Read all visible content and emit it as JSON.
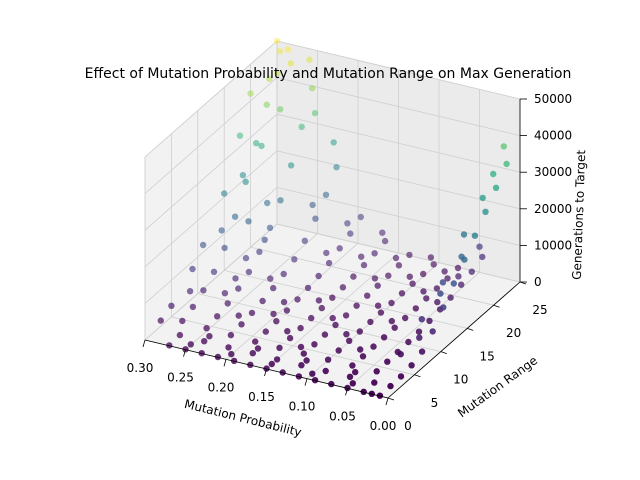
{
  "chart_data": {
    "type": "scatter",
    "projection": "3d",
    "title": "Effect of Mutation Probability and Mutation Range on Max Generation",
    "xlabel": "Mutation Probability",
    "ylabel": "Mutation Range",
    "zlabel": "Generations to Target",
    "xlim": [
      0,
      0.3
    ],
    "ylim": [
      0,
      25
    ],
    "zlim": [
      0,
      50000
    ],
    "xticks": [
      "0.00",
      "0.05",
      "0.10",
      "0.15",
      "0.20",
      "0.25",
      "0.30"
    ],
    "yticks": [
      "0",
      "5",
      "10",
      "15",
      "20",
      "25"
    ],
    "zticks": [
      "0",
      "10000",
      "20000",
      "30000",
      "40000",
      "50000"
    ],
    "colormap": "viridis",
    "color_by": "z",
    "grid": true,
    "pane_color": "#f2f2f2",
    "series": [
      {
        "points": [
          {
            "x": 0.01,
            "y": 0,
            "z": 100
          },
          {
            "x": 0.02,
            "y": 0,
            "z": 100
          },
          {
            "x": 0.03,
            "y": 0,
            "z": 100
          },
          {
            "x": 0.05,
            "y": 0,
            "z": 100
          },
          {
            "x": 0.07,
            "y": 0,
            "z": 100
          },
          {
            "x": 0.09,
            "y": 0,
            "z": 100
          },
          {
            "x": 0.11,
            "y": 0,
            "z": 100
          },
          {
            "x": 0.13,
            "y": 0,
            "z": 100
          },
          {
            "x": 0.15,
            "y": 0,
            "z": 100
          },
          {
            "x": 0.17,
            "y": 0,
            "z": 100
          },
          {
            "x": 0.19,
            "y": 0,
            "z": 100
          },
          {
            "x": 0.21,
            "y": 0,
            "z": 100
          },
          {
            "x": 0.23,
            "y": 0,
            "z": 100
          },
          {
            "x": 0.25,
            "y": 0,
            "z": 100
          },
          {
            "x": 0.27,
            "y": 0,
            "z": 100
          },
          {
            "x": 0.01,
            "y": 2,
            "z": 200
          },
          {
            "x": 0.03,
            "y": 2,
            "z": 100
          },
          {
            "x": 0.06,
            "y": 2,
            "z": 100
          },
          {
            "x": 0.09,
            "y": 2,
            "z": 100
          },
          {
            "x": 0.12,
            "y": 2,
            "z": 100
          },
          {
            "x": 0.15,
            "y": 2,
            "z": 100
          },
          {
            "x": 0.18,
            "y": 2,
            "z": 200
          },
          {
            "x": 0.21,
            "y": 2,
            "z": 200
          },
          {
            "x": 0.24,
            "y": 2,
            "z": 300
          },
          {
            "x": 0.27,
            "y": 2,
            "z": 400
          },
          {
            "x": 0.01,
            "y": 4,
            "z": 300
          },
          {
            "x": 0.04,
            "y": 4,
            "z": 100
          },
          {
            "x": 0.07,
            "y": 4,
            "z": 100
          },
          {
            "x": 0.1,
            "y": 4,
            "z": 100
          },
          {
            "x": 0.13,
            "y": 4,
            "z": 200
          },
          {
            "x": 0.16,
            "y": 4,
            "z": 200
          },
          {
            "x": 0.19,
            "y": 4,
            "z": 300
          },
          {
            "x": 0.22,
            "y": 4,
            "z": 500
          },
          {
            "x": 0.25,
            "y": 4,
            "z": 800
          },
          {
            "x": 0.28,
            "y": 4,
            "z": 1200
          },
          {
            "x": 0.01,
            "y": 6,
            "z": 800
          },
          {
            "x": 0.04,
            "y": 6,
            "z": 200
          },
          {
            "x": 0.07,
            "y": 6,
            "z": 100
          },
          {
            "x": 0.1,
            "y": 6,
            "z": 100
          },
          {
            "x": 0.13,
            "y": 6,
            "z": 200
          },
          {
            "x": 0.16,
            "y": 6,
            "z": 300
          },
          {
            "x": 0.19,
            "y": 6,
            "z": 500
          },
          {
            "x": 0.22,
            "y": 6,
            "z": 900
          },
          {
            "x": 0.25,
            "y": 6,
            "z": 1500
          },
          {
            "x": 0.28,
            "y": 6,
            "z": 2500
          },
          {
            "x": 0.01,
            "y": 8,
            "z": 2000
          },
          {
            "x": 0.04,
            "y": 8,
            "z": 300
          },
          {
            "x": 0.07,
            "y": 8,
            "z": 200
          },
          {
            "x": 0.1,
            "y": 8,
            "z": 200
          },
          {
            "x": 0.13,
            "y": 8,
            "z": 300
          },
          {
            "x": 0.16,
            "y": 8,
            "z": 500
          },
          {
            "x": 0.19,
            "y": 8,
            "z": 800
          },
          {
            "x": 0.22,
            "y": 8,
            "z": 1500
          },
          {
            "x": 0.25,
            "y": 8,
            "z": 2500
          },
          {
            "x": 0.28,
            "y": 8,
            "z": 4500
          },
          {
            "x": 0.01,
            "y": 10,
            "z": 5000
          },
          {
            "x": 0.04,
            "y": 10,
            "z": 500
          },
          {
            "x": 0.07,
            "y": 10,
            "z": 200
          },
          {
            "x": 0.1,
            "y": 10,
            "z": 200
          },
          {
            "x": 0.13,
            "y": 10,
            "z": 400
          },
          {
            "x": 0.16,
            "y": 10,
            "z": 700
          },
          {
            "x": 0.19,
            "y": 10,
            "z": 1200
          },
          {
            "x": 0.22,
            "y": 10,
            "z": 2200
          },
          {
            "x": 0.25,
            "y": 10,
            "z": 4000
          },
          {
            "x": 0.28,
            "y": 10,
            "z": 7000
          },
          {
            "x": 0.01,
            "y": 12,
            "z": 9000
          },
          {
            "x": 0.04,
            "y": 12,
            "z": 800
          },
          {
            "x": 0.07,
            "y": 12,
            "z": 300
          },
          {
            "x": 0.1,
            "y": 12,
            "z": 300
          },
          {
            "x": 0.13,
            "y": 12,
            "z": 500
          },
          {
            "x": 0.16,
            "y": 12,
            "z": 900
          },
          {
            "x": 0.19,
            "y": 12,
            "z": 1700
          },
          {
            "x": 0.22,
            "y": 12,
            "z": 3200
          },
          {
            "x": 0.25,
            "y": 12,
            "z": 6000
          },
          {
            "x": 0.28,
            "y": 12,
            "z": 11000
          },
          {
            "x": 0.01,
            "y": 14,
            "z": 13000
          },
          {
            "x": 0.04,
            "y": 14,
            "z": 1200
          },
          {
            "x": 0.07,
            "y": 14,
            "z": 400
          },
          {
            "x": 0.1,
            "y": 14,
            "z": 300
          },
          {
            "x": 0.13,
            "y": 14,
            "z": 600
          },
          {
            "x": 0.16,
            "y": 14,
            "z": 1200
          },
          {
            "x": 0.19,
            "y": 14,
            "z": 2300
          },
          {
            "x": 0.22,
            "y": 14,
            "z": 4500
          },
          {
            "x": 0.25,
            "y": 14,
            "z": 9000
          },
          {
            "x": 0.28,
            "y": 14,
            "z": 17000
          },
          {
            "x": 0.01,
            "y": 16,
            "z": 17000
          },
          {
            "x": 0.04,
            "y": 16,
            "z": 1800
          },
          {
            "x": 0.07,
            "y": 16,
            "z": 500
          },
          {
            "x": 0.1,
            "y": 16,
            "z": 400
          },
          {
            "x": 0.13,
            "y": 16,
            "z": 800
          },
          {
            "x": 0.16,
            "y": 16,
            "z": 1500
          },
          {
            "x": 0.19,
            "y": 16,
            "z": 3000
          },
          {
            "x": 0.22,
            "y": 16,
            "z": 6000
          },
          {
            "x": 0.25,
            "y": 16,
            "z": 13000
          },
          {
            "x": 0.28,
            "y": 16,
            "z": 24000
          },
          {
            "x": 0.01,
            "y": 18,
            "z": 21000
          },
          {
            "x": 0.04,
            "y": 18,
            "z": 2500
          },
          {
            "x": 0.07,
            "y": 18,
            "z": 700
          },
          {
            "x": 0.1,
            "y": 18,
            "z": 500
          },
          {
            "x": 0.13,
            "y": 18,
            "z": 1000
          },
          {
            "x": 0.16,
            "y": 18,
            "z": 1900
          },
          {
            "x": 0.19,
            "y": 18,
            "z": 4000
          },
          {
            "x": 0.22,
            "y": 18,
            "z": 8500
          },
          {
            "x": 0.25,
            "y": 18,
            "z": 18000
          },
          {
            "x": 0.28,
            "y": 18,
            "z": 32000
          },
          {
            "x": 0.01,
            "y": 20,
            "z": 25000
          },
          {
            "x": 0.04,
            "y": 20,
            "z": 3500
          },
          {
            "x": 0.07,
            "y": 20,
            "z": 900
          },
          {
            "x": 0.1,
            "y": 20,
            "z": 600
          },
          {
            "x": 0.13,
            "y": 20,
            "z": 1200
          },
          {
            "x": 0.16,
            "y": 20,
            "z": 2500
          },
          {
            "x": 0.19,
            "y": 20,
            "z": 5500
          },
          {
            "x": 0.22,
            "y": 20,
            "z": 12000
          },
          {
            "x": 0.25,
            "y": 20,
            "z": 25000
          },
          {
            "x": 0.28,
            "y": 20,
            "z": 40000
          },
          {
            "x": 0.01,
            "y": 22,
            "z": 29000
          },
          {
            "x": 0.04,
            "y": 22,
            "z": 4500
          },
          {
            "x": 0.07,
            "y": 22,
            "z": 1100
          },
          {
            "x": 0.1,
            "y": 22,
            "z": 700
          },
          {
            "x": 0.13,
            "y": 22,
            "z": 1500
          },
          {
            "x": 0.16,
            "y": 22,
            "z": 3200
          },
          {
            "x": 0.19,
            "y": 22,
            "z": 7000
          },
          {
            "x": 0.22,
            "y": 22,
            "z": 16000
          },
          {
            "x": 0.25,
            "y": 22,
            "z": 33000
          },
          {
            "x": 0.28,
            "y": 22,
            "z": 46000
          },
          {
            "x": 0.01,
            "y": 24,
            "z": 33000
          },
          {
            "x": 0.04,
            "y": 24,
            "z": 6000
          },
          {
            "x": 0.07,
            "y": 24,
            "z": 1400
          },
          {
            "x": 0.1,
            "y": 24,
            "z": 800
          },
          {
            "x": 0.13,
            "y": 24,
            "z": 1800
          },
          {
            "x": 0.16,
            "y": 24,
            "z": 4000
          },
          {
            "x": 0.19,
            "y": 24,
            "z": 9000
          },
          {
            "x": 0.22,
            "y": 24,
            "z": 21000
          },
          {
            "x": 0.25,
            "y": 24,
            "z": 41000
          },
          {
            "x": 0.28,
            "y": 24,
            "z": 50000
          },
          {
            "x": 0.27,
            "y": 23,
            "z": 48000
          },
          {
            "x": 0.29,
            "y": 24,
            "z": 49000
          },
          {
            "x": 0.26,
            "y": 25,
            "z": 47000
          },
          {
            "x": 0.29,
            "y": 22,
            "z": 44000
          },
          {
            "x": 0.3,
            "y": 25,
            "z": 50000
          },
          {
            "x": 0.24,
            "y": 23,
            "z": 36000
          },
          {
            "x": 0.27,
            "y": 21,
            "z": 38000
          },
          {
            "x": 0.28,
            "y": 19,
            "z": 30000
          },
          {
            "x": 0.29,
            "y": 17,
            "z": 24000
          },
          {
            "x": 0.3,
            "y": 20,
            "z": 42000
          },
          {
            "x": 0.3,
            "y": 18,
            "z": 33000
          },
          {
            "x": 0.26,
            "y": 17,
            "z": 18000
          },
          {
            "x": 0.27,
            "y": 15,
            "z": 15000
          },
          {
            "x": 0.29,
            "y": 13,
            "z": 14000
          },
          {
            "x": 0.3,
            "y": 15,
            "z": 21000
          },
          {
            "x": 0.25,
            "y": 15,
            "z": 11000
          },
          {
            "x": 0.3,
            "y": 11,
            "z": 12000
          },
          {
            "x": 0.3,
            "y": 9,
            "z": 8000
          },
          {
            "x": 0.29,
            "y": 7,
            "z": 5000
          },
          {
            "x": 0.3,
            "y": 5,
            "z": 3000
          },
          {
            "x": 0.02,
            "y": 25,
            "z": 36000
          },
          {
            "x": 0.02,
            "y": 23,
            "z": 31000
          },
          {
            "x": 0.02,
            "y": 21,
            "z": 27000
          },
          {
            "x": 0.03,
            "y": 19,
            "z": 19000
          },
          {
            "x": 0.02,
            "y": 17,
            "z": 16000
          },
          {
            "x": 0.03,
            "y": 15,
            "z": 11000
          },
          {
            "x": 0.02,
            "y": 13,
            "z": 11000
          },
          {
            "x": 0.03,
            "y": 11,
            "z": 6000
          },
          {
            "x": 0.02,
            "y": 9,
            "z": 4000
          },
          {
            "x": 0.03,
            "y": 7,
            "z": 1500
          },
          {
            "x": 0.05,
            "y": 25,
            "z": 7000
          },
          {
            "x": 0.05,
            "y": 21,
            "z": 4000
          },
          {
            "x": 0.05,
            "y": 17,
            "z": 2000
          },
          {
            "x": 0.08,
            "y": 23,
            "z": 1200
          },
          {
            "x": 0.08,
            "y": 19,
            "z": 800
          },
          {
            "x": 0.11,
            "y": 25,
            "z": 900
          },
          {
            "x": 0.11,
            "y": 21,
            "z": 700
          },
          {
            "x": 0.14,
            "y": 23,
            "z": 1700
          },
          {
            "x": 0.14,
            "y": 19,
            "z": 1200
          },
          {
            "x": 0.17,
            "y": 25,
            "z": 4500
          },
          {
            "x": 0.17,
            "y": 21,
            "z": 3000
          },
          {
            "x": 0.2,
            "y": 23,
            "z": 8000
          },
          {
            "x": 0.2,
            "y": 19,
            "z": 5000
          },
          {
            "x": 0.23,
            "y": 25,
            "z": 26000
          },
          {
            "x": 0.23,
            "y": 21,
            "z": 14000
          },
          {
            "x": 0.08,
            "y": 13,
            "z": 300
          },
          {
            "x": 0.11,
            "y": 15,
            "z": 400
          },
          {
            "x": 0.14,
            "y": 11,
            "z": 500
          },
          {
            "x": 0.17,
            "y": 13,
            "z": 1200
          },
          {
            "x": 0.2,
            "y": 11,
            "z": 1700
          },
          {
            "x": 0.23,
            "y": 13,
            "z": 4000
          },
          {
            "x": 0.08,
            "y": 7,
            "z": 150
          },
          {
            "x": 0.11,
            "y": 9,
            "z": 200
          },
          {
            "x": 0.14,
            "y": 5,
            "z": 200
          },
          {
            "x": 0.17,
            "y": 7,
            "z": 400
          },
          {
            "x": 0.2,
            "y": 9,
            "z": 1000
          },
          {
            "x": 0.23,
            "y": 7,
            "z": 1500
          },
          {
            "x": 0.26,
            "y": 9,
            "z": 3500
          },
          {
            "x": 0.26,
            "y": 11,
            "z": 5000
          },
          {
            "x": 0.26,
            "y": 13,
            "z": 8000
          },
          {
            "x": 0.05,
            "y": 1,
            "z": 100
          },
          {
            "x": 0.1,
            "y": 1,
            "z": 100
          },
          {
            "x": 0.15,
            "y": 1,
            "z": 100
          },
          {
            "x": 0.2,
            "y": 1,
            "z": 150
          },
          {
            "x": 0.25,
            "y": 1,
            "z": 200
          },
          {
            "x": 0.06,
            "y": 3,
            "z": 100
          },
          {
            "x": 0.12,
            "y": 3,
            "z": 100
          },
          {
            "x": 0.18,
            "y": 3,
            "z": 200
          },
          {
            "x": 0.24,
            "y": 3,
            "z": 400
          },
          {
            "x": 0.3,
            "y": 3,
            "z": 1500
          }
        ]
      }
    ]
  }
}
